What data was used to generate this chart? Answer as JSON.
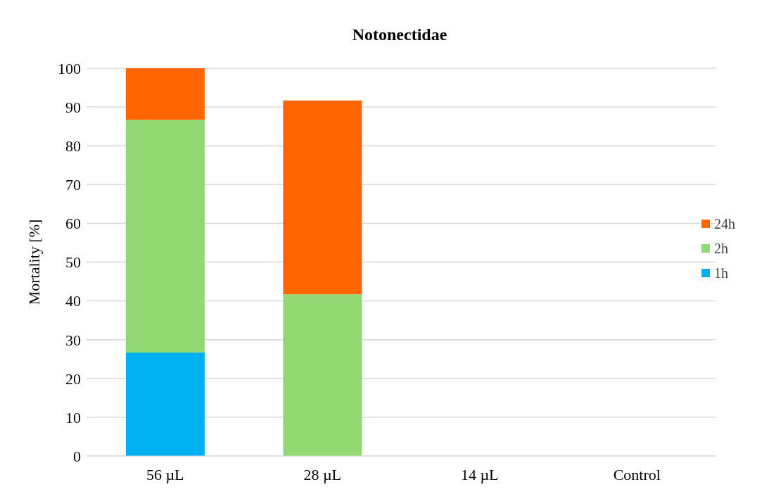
{
  "chart_data": {
    "type": "bar",
    "title": "Notonectidae",
    "ylabel": "Mortality [%]",
    "categories": [
      "56 µL",
      "28 µL",
      "14 µL",
      "Control"
    ],
    "stacked": true,
    "series": [
      {
        "name": "1h",
        "color": "#00b0f0",
        "values": [
          26.7,
          0,
          0,
          0
        ]
      },
      {
        "name": "2h",
        "color": "#92d873",
        "values": [
          60,
          41.7,
          0,
          0
        ]
      },
      {
        "name": "24h",
        "color": "#ff6600",
        "values": [
          13.3,
          50,
          0,
          0
        ]
      }
    ],
    "ylim": [
      0,
      100
    ],
    "yticks": [
      0,
      10,
      20,
      30,
      40,
      50,
      60,
      70,
      80,
      90,
      100
    ],
    "grid": "y",
    "legend": "right"
  }
}
